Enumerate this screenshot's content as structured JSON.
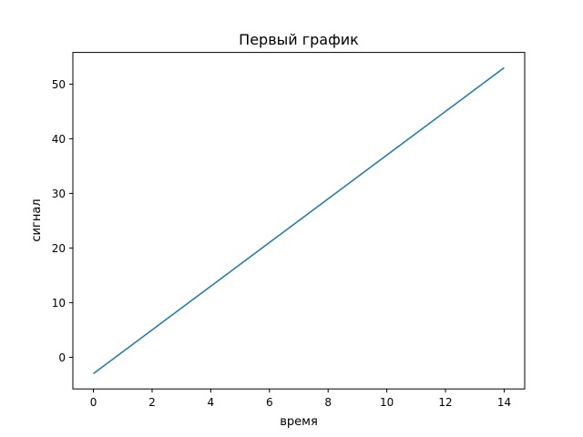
{
  "chart_data": {
    "type": "line",
    "title": "Первый график",
    "xlabel": "время",
    "ylabel": "сигнал",
    "xlim": [
      -0.7,
      14.7
    ],
    "ylim": [
      -5.8,
      55.8
    ],
    "xticks": [
      0,
      2,
      4,
      6,
      8,
      10,
      12,
      14
    ],
    "yticks": [
      0,
      10,
      20,
      30,
      40,
      50
    ],
    "grid": false,
    "series": [
      {
        "color": "#1f77b4",
        "x": [
          0,
          1,
          2,
          3,
          4,
          5,
          6,
          7,
          8,
          9,
          10,
          11,
          12,
          13,
          14
        ],
        "y": [
          -3,
          1,
          5,
          9,
          13,
          17,
          21,
          25,
          29,
          33,
          37,
          41,
          45,
          49,
          53
        ]
      }
    ]
  }
}
